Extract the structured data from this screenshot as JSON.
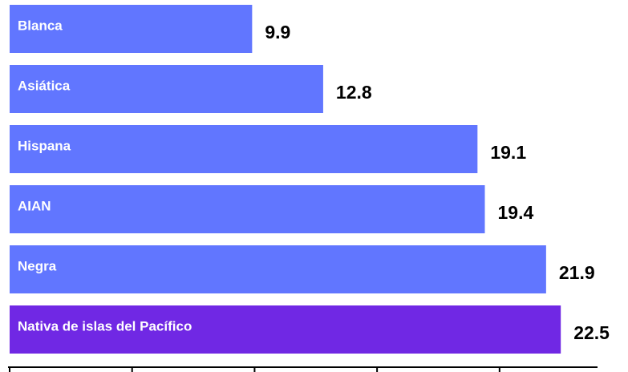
{
  "chart_data": {
    "type": "bar",
    "orientation": "horizontal",
    "categories": [
      "Blanca",
      "Asiática",
      "Hispana",
      "AIAN",
      "Negra",
      "Nativa de islas del Pacífico"
    ],
    "values": [
      9.9,
      12.8,
      19.1,
      19.4,
      21.9,
      22.5
    ],
    "colors": [
      "#6176ff",
      "#6176ff",
      "#6176ff",
      "#6176ff",
      "#6176ff",
      "#7028e4"
    ],
    "xlim": [
      0,
      24
    ],
    "xticks": [
      0,
      5,
      10,
      15,
      20
    ]
  }
}
